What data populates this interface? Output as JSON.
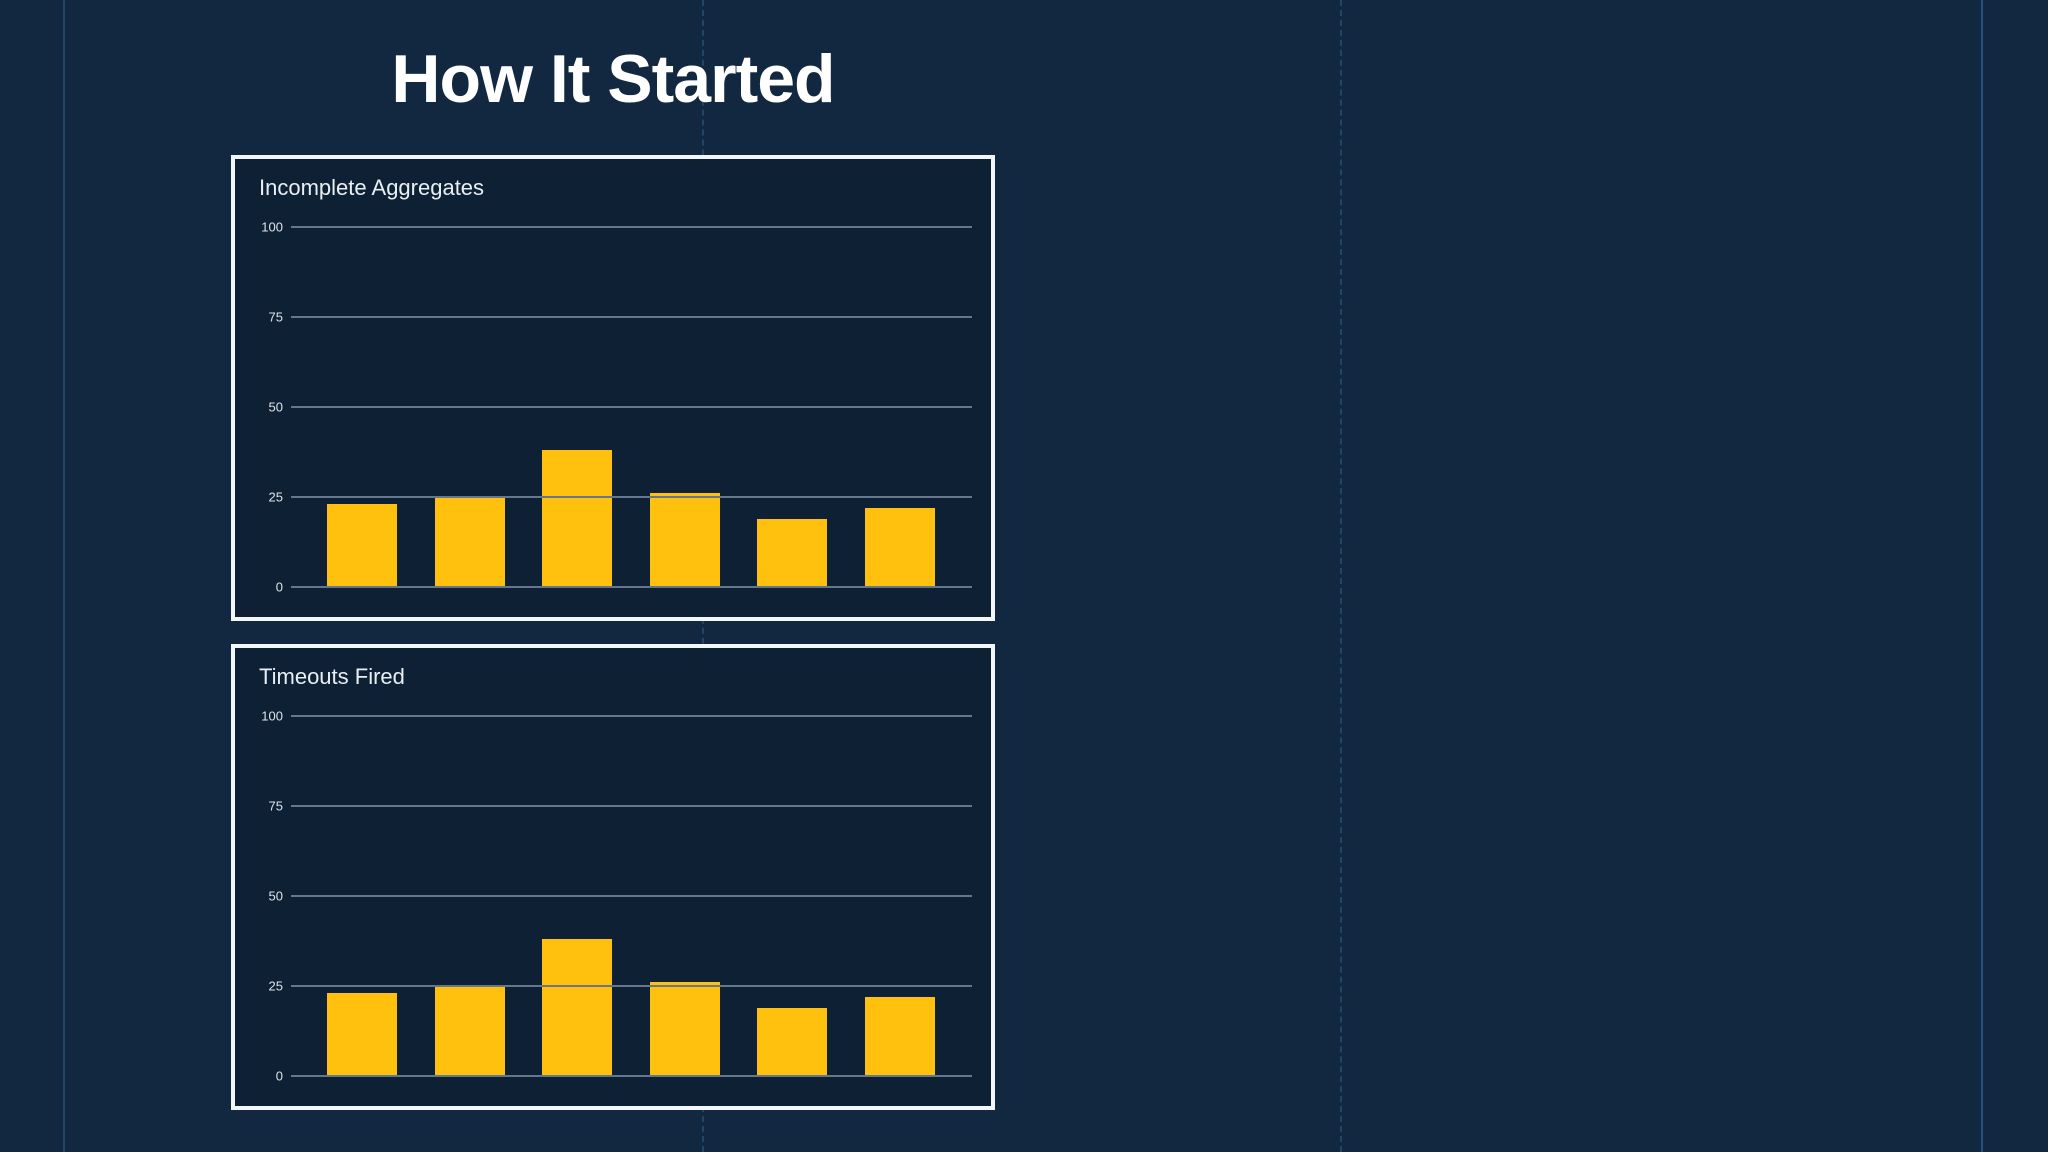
{
  "page": {
    "title": "How It Started"
  },
  "colors": {
    "page_bg": "#112840",
    "panel_bg": "#0e2134",
    "panel_border": "#f4f7fa",
    "bar": "#ffc10d",
    "gridline": "#64778c",
    "tick_label": "#dde3ea",
    "chart_title": "#e9eef3",
    "page_title": "#ffffff",
    "guide": "#224566",
    "guide_right": "#265080"
  },
  "chart_data": [
    {
      "type": "bar",
      "title": "Incomplete Aggregates",
      "categories": [
        "",
        "",
        "",
        "",
        "",
        ""
      ],
      "values": [
        23,
        25,
        38,
        26,
        19,
        22
      ],
      "xlabel": "",
      "ylabel": "",
      "ylim": [
        0,
        100
      ],
      "yticks": [
        0,
        25,
        50,
        75,
        100
      ],
      "grid": true,
      "legend": false,
      "gridlines_over_bars": true,
      "bar_color": "#ffc10d"
    },
    {
      "type": "bar",
      "title": "Timeouts Fired",
      "categories": [
        "",
        "",
        "",
        "",
        "",
        ""
      ],
      "values": [
        23,
        25,
        38,
        26,
        19,
        22
      ],
      "xlabel": "",
      "ylabel": "",
      "ylim": [
        0,
        100
      ],
      "yticks": [
        0,
        25,
        50,
        75,
        100
      ],
      "grid": true,
      "legend": false,
      "gridlines_over_bars": true,
      "bar_color": "#ffc10d"
    }
  ]
}
